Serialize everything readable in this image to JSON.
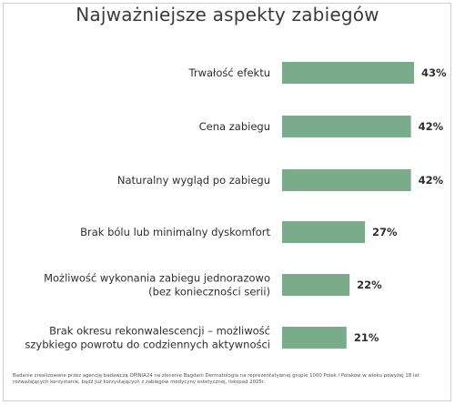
{
  "chart_data": {
    "type": "bar",
    "orientation": "horizontal",
    "title": "Najważniejsze aspekty zabiegów",
    "categories": [
      [
        "Trwałość efektu"
      ],
      [
        "Cena zabiegu"
      ],
      [
        "Naturalny wygląd po zabiegu"
      ],
      [
        "Brak bólu lub minimalny dyskomfort"
      ],
      [
        "Możliwość wykonania zabiegu jednorazowo",
        "(bez konieczności serii)"
      ],
      [
        "Brak okresu rekonwalescencji – możliwość",
        "szybkiego powrotu do codziennych aktywności"
      ]
    ],
    "values": [
      43,
      42,
      42,
      27,
      22,
      21
    ],
    "value_labels": [
      "43%",
      "42%",
      "42%",
      "27%",
      "22%",
      "21%"
    ],
    "bar_color": "#7aab8a",
    "grid": false
  },
  "footnote": "Badanie zrealizowane przez agencję badawczą OPINIA24 na zlecenie Bagdani Dermatologia na reprezentatywnej grupie 1000 Polek i Polaków w wieku powyżej 18 lat rozważających korzystanie, bądź już korzystających z zabiegów medycyny estetycznej, listopad 2025r."
}
